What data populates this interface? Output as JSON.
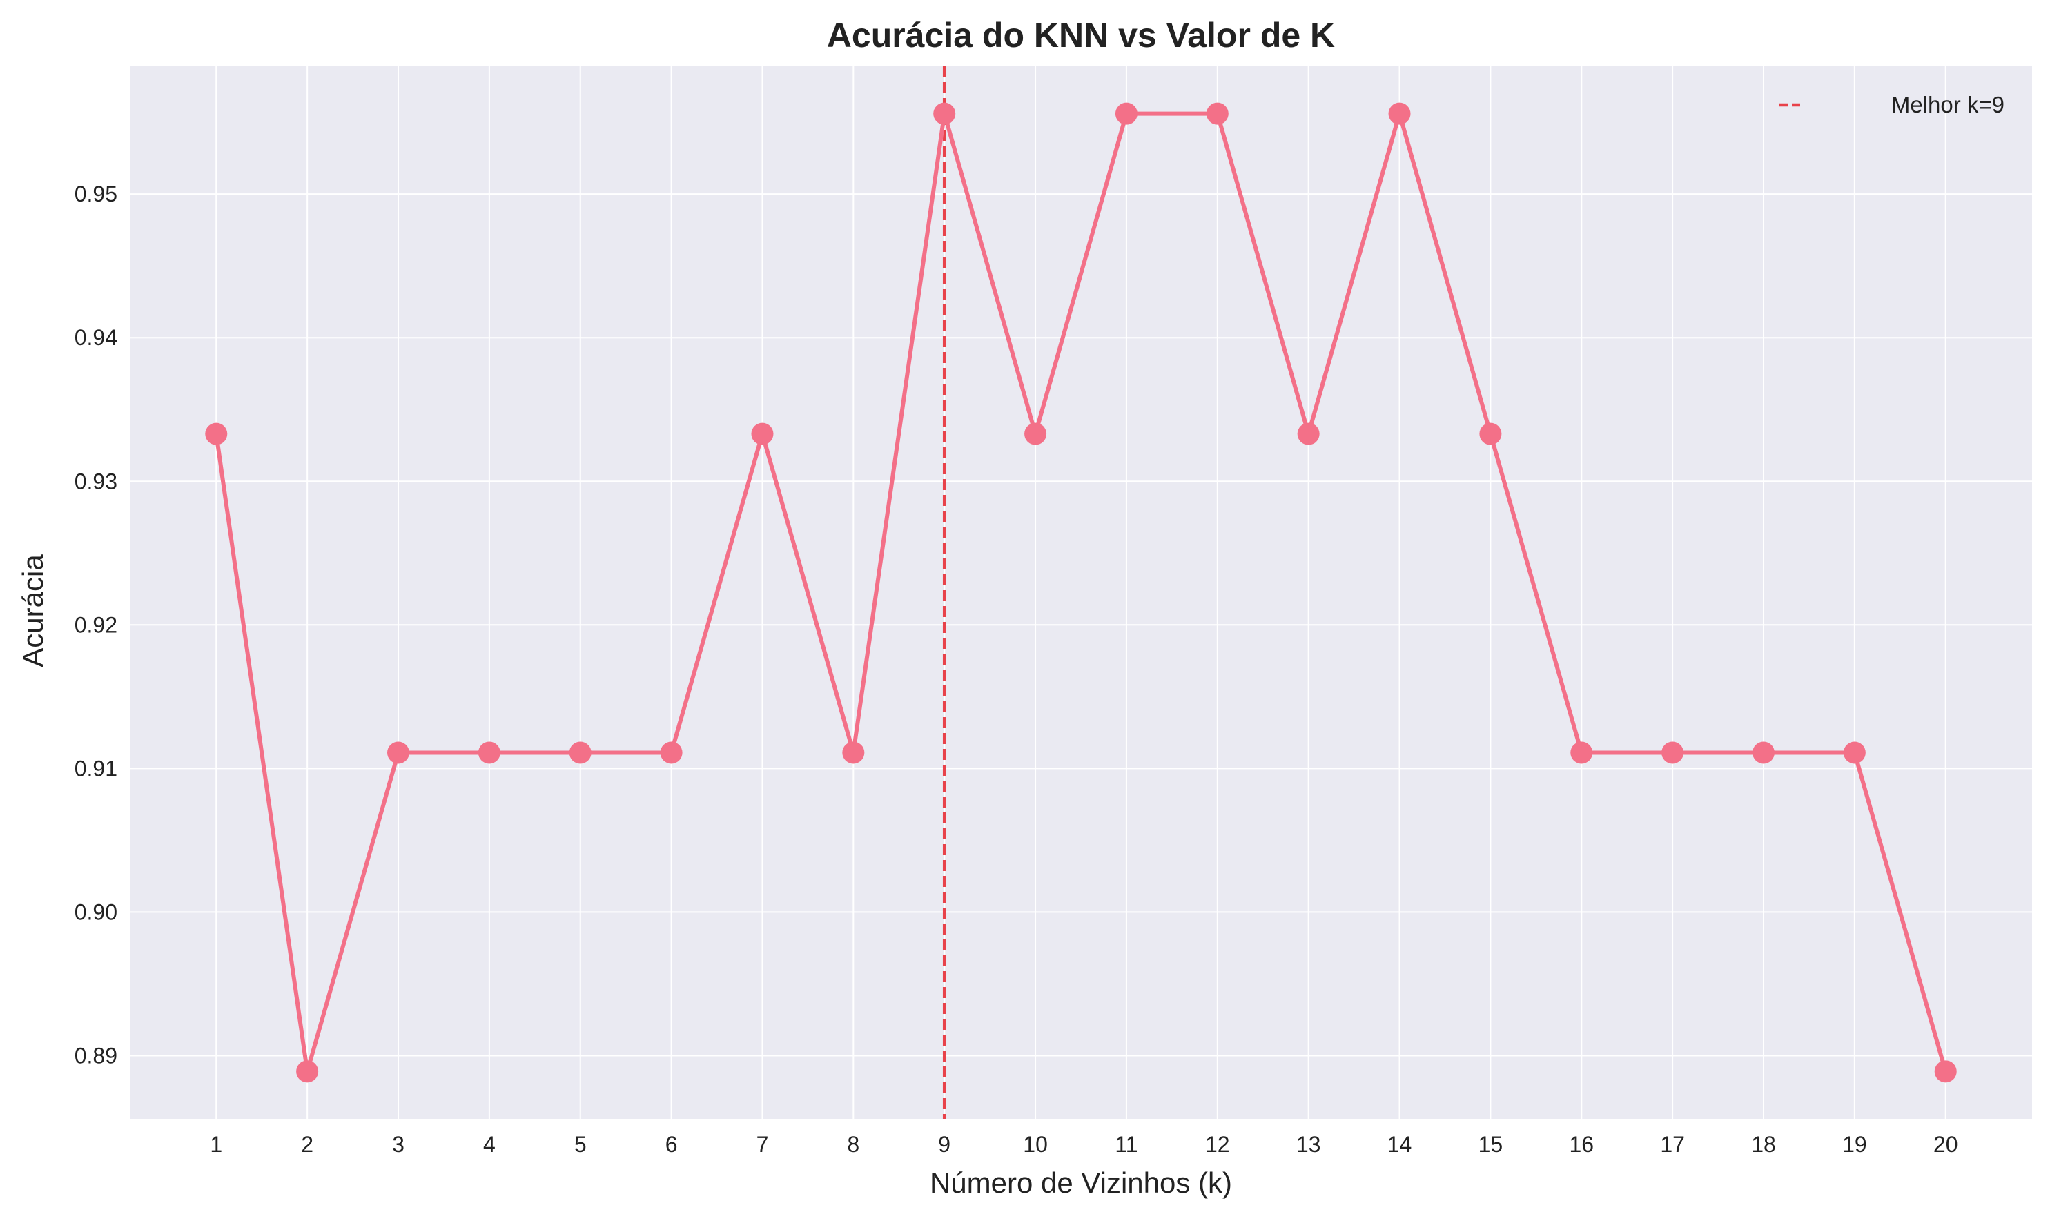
{
  "chart_data": {
    "type": "line",
    "title": "Acurácia do KNN vs Valor de K",
    "xlabel": "Número de Vizinhos (k)",
    "ylabel": "Acurácia",
    "x": [
      1,
      2,
      3,
      4,
      5,
      6,
      7,
      8,
      9,
      10,
      11,
      12,
      13,
      14,
      15,
      16,
      17,
      18,
      19,
      20
    ],
    "x_tick_labels": [
      "1",
      "2",
      "3",
      "4",
      "5",
      "6",
      "7",
      "8",
      "9",
      "10",
      "11",
      "12",
      "13",
      "14",
      "15",
      "16",
      "17",
      "18",
      "19",
      "20"
    ],
    "y_ticks": [
      0.89,
      0.9,
      0.91,
      0.92,
      0.93,
      0.94,
      0.95
    ],
    "y_tick_labels": [
      "0.89",
      "0.90",
      "0.91",
      "0.92",
      "0.93",
      "0.94",
      "0.95"
    ],
    "xlim": [
      0.05,
      20.95
    ],
    "ylim": [
      0.8856,
      0.9589
    ],
    "series": [
      {
        "values": [
          0.9333,
          0.8889,
          0.9111,
          0.9111,
          0.9111,
          0.9111,
          0.9333,
          0.9111,
          0.9556,
          0.9333,
          0.9556,
          0.9556,
          0.9333,
          0.9556,
          0.9333,
          0.9111,
          0.9111,
          0.9111,
          0.9111,
          0.8889
        ],
        "color": "#f37088",
        "marker": "circle"
      }
    ],
    "annotations": [
      {
        "type": "vline",
        "x": 9,
        "color": "#e8424a",
        "style": "dashed",
        "label": "Melhor k=9"
      }
    ],
    "legend": {
      "position": "top-right",
      "entries": [
        "Melhor k=9"
      ]
    },
    "grid": true,
    "background": "#eaeaf2",
    "grid_color": "#ffffff"
  }
}
